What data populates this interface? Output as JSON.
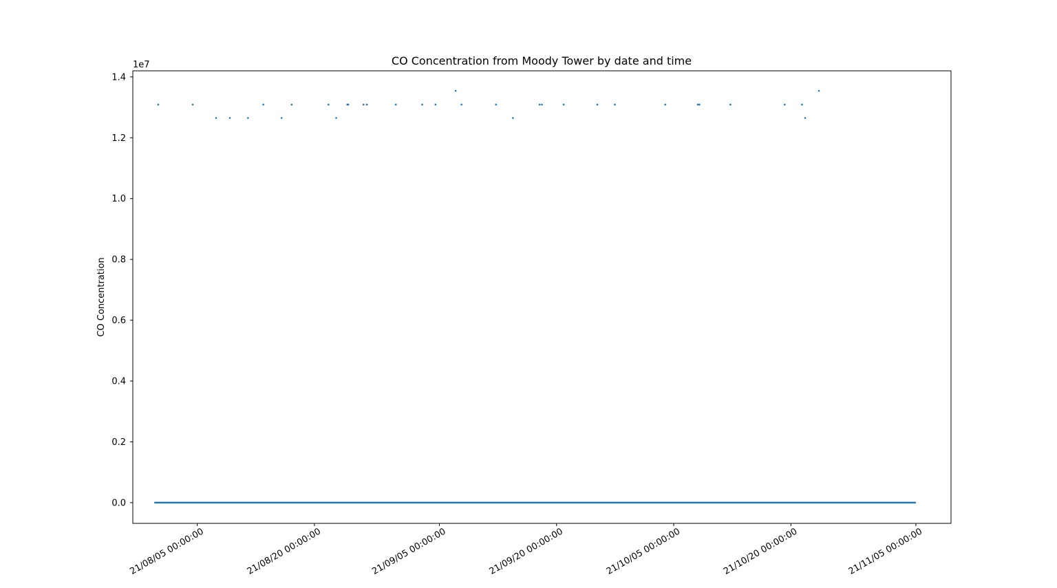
{
  "chart_data": {
    "type": "scatter",
    "title": "CO Concentration from Moody Tower by date and time",
    "xlabel": "",
    "ylabel": "CO Concentration",
    "y_offset_label": "1e7",
    "y_tick_labels": [
      "0.0",
      "0.2",
      "0.4",
      "0.6",
      "0.8",
      "1.0",
      "1.2",
      "1.4"
    ],
    "y_tick_values": [
      0,
      0.2,
      0.4,
      0.6,
      0.8,
      1.0,
      1.2,
      1.4
    ],
    "x_tick_labels": [
      "21/08/05 00:00:00",
      "21/08/20 00:00:00",
      "21/09/05 00:00:00",
      "21/09/20 00:00:00",
      "21/10/05 00:00:00",
      "21/10/20 00:00:00",
      "21/11/05 00:00:00"
    ],
    "x_tick_values": [
      "2021-08-05",
      "2021-08-20",
      "2021-09-05",
      "2021-09-20",
      "2021-10-05",
      "2021-10-20",
      "2021-11-05"
    ],
    "xlim": [
      "2021-07-27T18:00",
      "2021-11-09T12:00"
    ],
    "ylim": [
      -0.068,
      1.42
    ],
    "grid": false,
    "color": "#1f77b4",
    "baseline": {
      "from": "2021-07-30T12:00",
      "to": "2021-11-05T00:00",
      "value": 0
    },
    "points": [
      {
        "x": "2021-07-31T00:00",
        "y": 1.309
      },
      {
        "x": "2021-08-04T10:00",
        "y": 1.309
      },
      {
        "x": "2021-08-07T10:00",
        "y": 1.265
      },
      {
        "x": "2021-08-09T04:00",
        "y": 1.265
      },
      {
        "x": "2021-08-11T12:00",
        "y": 1.265
      },
      {
        "x": "2021-08-13T11:00",
        "y": 1.309
      },
      {
        "x": "2021-08-15T19:00",
        "y": 1.265
      },
      {
        "x": "2021-08-17T02:00",
        "y": 1.309
      },
      {
        "x": "2021-08-21T19:00",
        "y": 1.309
      },
      {
        "x": "2021-08-22T19:00",
        "y": 1.265
      },
      {
        "x": "2021-08-24T05:00",
        "y": 1.309
      },
      {
        "x": "2021-08-24T08:00",
        "y": 1.309
      },
      {
        "x": "2021-08-26T07:00",
        "y": 1.309
      },
      {
        "x": "2021-08-26T17:00",
        "y": 1.309
      },
      {
        "x": "2021-08-30T10:00",
        "y": 1.309
      },
      {
        "x": "2021-09-02T19:00",
        "y": 1.309
      },
      {
        "x": "2021-09-04T12:00",
        "y": 1.309
      },
      {
        "x": "2021-09-07T02:00",
        "y": 1.354
      },
      {
        "x": "2021-09-07T20:00",
        "y": 1.309
      },
      {
        "x": "2021-09-12T06:00",
        "y": 1.309
      },
      {
        "x": "2021-09-14T10:00",
        "y": 1.265
      },
      {
        "x": "2021-09-17T20:00",
        "y": 1.309
      },
      {
        "x": "2021-09-18T03:00",
        "y": 1.309
      },
      {
        "x": "2021-09-20T22:00",
        "y": 1.309
      },
      {
        "x": "2021-09-25T05:00",
        "y": 1.309
      },
      {
        "x": "2021-09-27T11:00",
        "y": 1.309
      },
      {
        "x": "2021-10-03T22:00",
        "y": 1.309
      },
      {
        "x": "2021-10-08T02:00",
        "y": 1.309
      },
      {
        "x": "2021-10-08T07:00",
        "y": 1.309
      },
      {
        "x": "2021-10-12T06:00",
        "y": 1.309
      },
      {
        "x": "2021-10-19T05:00",
        "y": 1.309
      },
      {
        "x": "2021-10-21T10:00",
        "y": 1.309
      },
      {
        "x": "2021-10-21T20:00",
        "y": 1.265
      },
      {
        "x": "2021-10-23T14:00",
        "y": 1.354
      }
    ]
  }
}
